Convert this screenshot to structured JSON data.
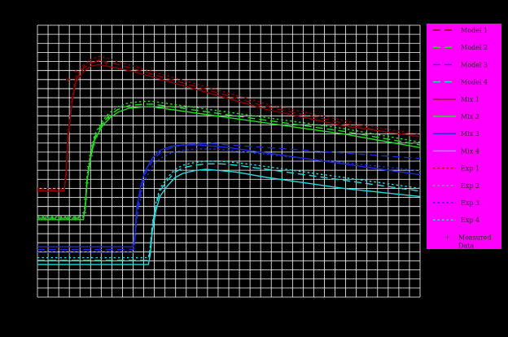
{
  "chart_data": {
    "type": "line",
    "title": "",
    "xlabel": "",
    "ylabel": "",
    "xlim": [
      0,
      100
    ],
    "ylim": [
      0,
      100
    ],
    "grid": true,
    "legend_position": "right",
    "colors": {
      "background": "#000000",
      "grid": "#ffffff",
      "legend_bg": "#ff00ff",
      "group1": "#8b0000",
      "group2": "#22dd22",
      "group3": "#1a2bdd",
      "group4": "#22dddd"
    },
    "legend": [
      {
        "label": "Model 1",
        "dash": "long",
        "color": "#8b0000"
      },
      {
        "label": "Model 2",
        "dash": "long",
        "color": "#22dd22"
      },
      {
        "label": "Model 3",
        "dash": "long",
        "color": "#1a2bdd"
      },
      {
        "label": "Model 4",
        "dash": "long",
        "color": "#22dddd"
      },
      {
        "label": "Mix 1",
        "dash": "solid",
        "color": "#8b0000"
      },
      {
        "label": "Mix 2",
        "dash": "solid",
        "color": "#22dd22"
      },
      {
        "label": "Mix 3",
        "dash": "solid",
        "color": "#1a2bdd"
      },
      {
        "label": "Mix 4",
        "dash": "solid",
        "color": "#22dddd"
      },
      {
        "label": "Exp 1",
        "dash": "dot",
        "color": "#8b0000"
      },
      {
        "label": "Exp 2",
        "dash": "dot",
        "color": "#22dd22"
      },
      {
        "label": "Exp 3",
        "dash": "dot",
        "color": "#1a2bdd"
      },
      {
        "label": "Exp 4",
        "dash": "dot",
        "color": "#22dddd"
      },
      {
        "label": "Measured Data",
        "dash": "marker",
        "color": "#555555"
      }
    ],
    "series": [
      {
        "legend_index": 0,
        "dash": "long",
        "color": "#8b0000",
        "x": [
          0,
          7,
          7.5,
          8,
          9,
          10,
          12,
          14,
          16,
          18,
          20,
          25,
          30,
          40,
          50,
          60,
          70,
          80,
          90,
          100
        ],
        "y": [
          39.5,
          39.5,
          46,
          60,
          72,
          80,
          84,
          86,
          87,
          86.5,
          86,
          84,
          82,
          78,
          74,
          70,
          67,
          64,
          61,
          59
        ]
      },
      {
        "legend_index": 4,
        "dash": "solid",
        "color": "#8b0000",
        "x": [
          0,
          7,
          7.5,
          8,
          9,
          10,
          12,
          14,
          16,
          18,
          20,
          25,
          30,
          40,
          50,
          60,
          70,
          80,
          90,
          100
        ],
        "y": [
          39,
          39,
          45,
          58,
          71,
          79,
          83,
          85,
          85.5,
          85,
          84.5,
          83,
          81,
          77,
          73,
          69,
          66,
          63,
          61,
          59
        ]
      },
      {
        "legend_index": 8,
        "dash": "dot",
        "color": "#8b0000",
        "x": [
          0,
          7,
          7.5,
          8,
          9,
          10,
          12,
          14,
          16,
          18,
          20,
          25,
          30,
          40,
          50,
          60,
          70,
          80,
          90,
          100
        ],
        "y": [
          40,
          40,
          47,
          61,
          73,
          81,
          85,
          87.5,
          88.5,
          88,
          87,
          85,
          83,
          79,
          75,
          71,
          68,
          65,
          62,
          60
        ]
      },
      {
        "legend_index": 1,
        "dash": "long",
        "color": "#22dd22",
        "x": [
          0,
          12,
          12.5,
          13,
          14,
          15,
          17,
          19,
          21,
          24,
          28,
          30,
          35,
          40,
          50,
          60,
          70,
          80,
          90,
          100
        ],
        "y": [
          29,
          29,
          34,
          44,
          53,
          59,
          64,
          67,
          69,
          70.5,
          71,
          71,
          70,
          69,
          67,
          65,
          63,
          61,
          58.5,
          56
        ]
      },
      {
        "legend_index": 5,
        "dash": "solid",
        "color": "#22dd22",
        "x": [
          0,
          12,
          12.5,
          13,
          14,
          15,
          17,
          19,
          21,
          24,
          28,
          30,
          35,
          40,
          50,
          60,
          70,
          80,
          90,
          100
        ],
        "y": [
          28.5,
          28.5,
          33,
          43,
          52,
          58,
          63,
          66,
          68,
          69.5,
          70,
          70,
          69,
          68,
          66,
          64,
          62,
          60,
          57.5,
          55
        ]
      },
      {
        "legend_index": 9,
        "dash": "dot",
        "color": "#22dd22",
        "x": [
          0,
          12,
          12.5,
          13,
          14,
          15,
          17,
          19,
          21,
          24,
          28,
          30,
          35,
          40,
          50,
          60,
          70,
          80,
          90,
          100
        ],
        "y": [
          29.5,
          29.5,
          35,
          45,
          54,
          60,
          65,
          68,
          70,
          71.5,
          72,
          72,
          71,
          70,
          68,
          66,
          64,
          62,
          59.5,
          57
        ]
      },
      {
        "legend_index": 2,
        "dash": "long",
        "color": "#1a2bdd",
        "x": [
          0,
          25,
          25.5,
          26,
          27,
          28,
          30,
          32,
          35,
          38,
          42,
          46,
          50,
          60,
          70,
          80,
          90,
          100
        ],
        "y": [
          17.5,
          17.5,
          22,
          31,
          39,
          45,
          50,
          53,
          55,
          56,
          56.5,
          56.5,
          56,
          55,
          54,
          53,
          52,
          51
        ]
      },
      {
        "legend_index": 6,
        "dash": "solid",
        "color": "#1a2bdd",
        "x": [
          0,
          25,
          25.5,
          26,
          27,
          28,
          30,
          32,
          35,
          38,
          42,
          46,
          50,
          60,
          70,
          80,
          90,
          100
        ],
        "y": [
          18.5,
          18.5,
          24,
          33,
          41,
          46,
          51,
          54,
          55.5,
          56,
          56,
          55.5,
          55,
          53,
          51,
          49,
          47,
          45
        ]
      },
      {
        "legend_index": 10,
        "dash": "dot",
        "color": "#1a2bdd",
        "x": [
          0,
          25,
          25.5,
          26,
          27,
          28,
          30,
          32,
          35,
          38,
          42,
          46,
          50,
          60,
          70,
          80,
          90,
          100
        ],
        "y": [
          16.5,
          16.5,
          21,
          29,
          37,
          43,
          48,
          51,
          53,
          54,
          54.5,
          54.5,
          54,
          52.5,
          51,
          49.5,
          48,
          46.5
        ]
      },
      {
        "legend_index": 3,
        "dash": "long",
        "color": "#22dddd",
        "x": [
          0,
          29,
          29.5,
          30,
          31,
          32,
          34,
          36,
          38,
          41,
          44,
          48,
          52,
          60,
          70,
          80,
          90,
          100
        ],
        "y": [
          13.5,
          13.5,
          18,
          26,
          34,
          39,
          43,
          46,
          47.5,
          48.5,
          49,
          49,
          48.5,
          47,
          45,
          43,
          41,
          39
        ]
      },
      {
        "legend_index": 7,
        "dash": "solid",
        "color": "#22dddd",
        "x": [
          0,
          29,
          29.5,
          30,
          31,
          32,
          34,
          36,
          38,
          41,
          44,
          48,
          52,
          60,
          70,
          80,
          90,
          100
        ],
        "y": [
          12,
          12,
          16,
          24,
          32,
          37,
          41,
          44,
          45.5,
          46.5,
          47,
          46.5,
          46,
          44,
          42,
          40,
          38.5,
          37
        ]
      },
      {
        "legend_index": 11,
        "dash": "dot",
        "color": "#22dddd",
        "x": [
          0,
          29,
          29.5,
          30,
          31,
          32,
          34,
          36,
          38,
          41,
          44,
          48,
          52,
          60,
          70,
          80,
          90,
          100
        ],
        "y": [
          14.5,
          14.5,
          19,
          27,
          35,
          40,
          44,
          47,
          48.5,
          49.5,
          50,
          50,
          49.5,
          48,
          46,
          44,
          42,
          40
        ]
      }
    ],
    "markers": [
      {
        "x": 2,
        "y": 29,
        "color": "#22dd22"
      },
      {
        "x": 4,
        "y": 29,
        "color": "#22dd22"
      },
      {
        "x": 6,
        "y": 29,
        "color": "#22dd22"
      },
      {
        "x": 8,
        "y": 29,
        "color": "#22dd22"
      },
      {
        "x": 10,
        "y": 29,
        "color": "#22dd22"
      },
      {
        "x": 12.2,
        "y": 31,
        "color": "#22dd22"
      },
      {
        "x": 12.6,
        "y": 36,
        "color": "#22dd22"
      },
      {
        "x": 13,
        "y": 42,
        "color": "#22dd22"
      },
      {
        "x": 13.5,
        "y": 48,
        "color": "#22dd22"
      },
      {
        "x": 14,
        "y": 52,
        "color": "#22dd22"
      },
      {
        "x": 14.6,
        "y": 56,
        "color": "#22dd22"
      },
      {
        "x": 15.3,
        "y": 59,
        "color": "#22dd22"
      },
      {
        "x": 16.2,
        "y": 62,
        "color": "#22dd22"
      },
      {
        "x": 17.2,
        "y": 64,
        "color": "#22dd22"
      },
      {
        "x": 18.5,
        "y": 66,
        "color": "#22dd22"
      },
      {
        "x": 8,
        "y": 80,
        "color": "#8b0000"
      },
      {
        "x": 10,
        "y": 83,
        "color": "#8b0000"
      },
      {
        "x": 12,
        "y": 85,
        "color": "#8b0000"
      },
      {
        "x": 14,
        "y": 86.5,
        "color": "#8b0000"
      },
      {
        "x": 16,
        "y": 87,
        "color": "#8b0000"
      },
      {
        "x": 18,
        "y": 86,
        "color": "#8b0000"
      }
    ]
  }
}
